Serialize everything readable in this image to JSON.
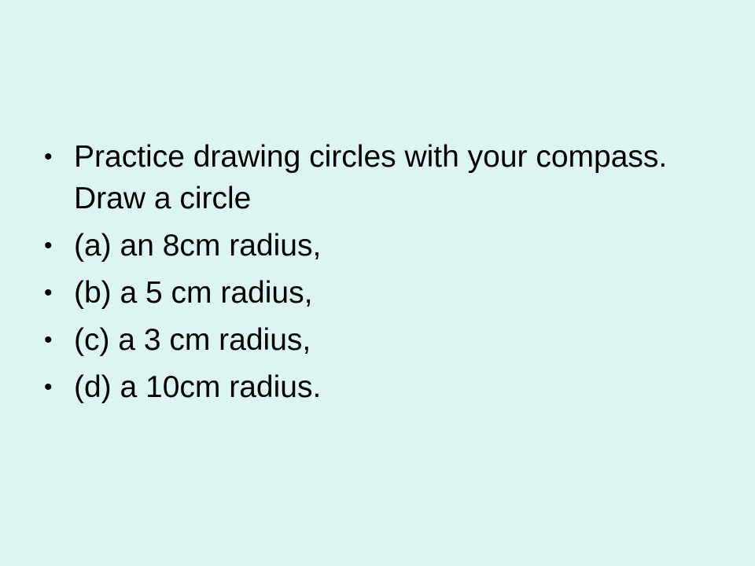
{
  "slide": {
    "background_color": "#ddf5f1",
    "text_color": "#000000",
    "bullet_symbol": "•",
    "bullets": [
      {
        "text": "Practice drawing circles with your compass.  Draw a circle"
      },
      {
        "text": "(a) an 8cm radius,"
      },
      {
        "text": "(b) a 5 cm radius,"
      },
      {
        "text": "(c) a 3 cm radius,"
      },
      {
        "text": "(d) a 10cm radius."
      }
    ]
  }
}
